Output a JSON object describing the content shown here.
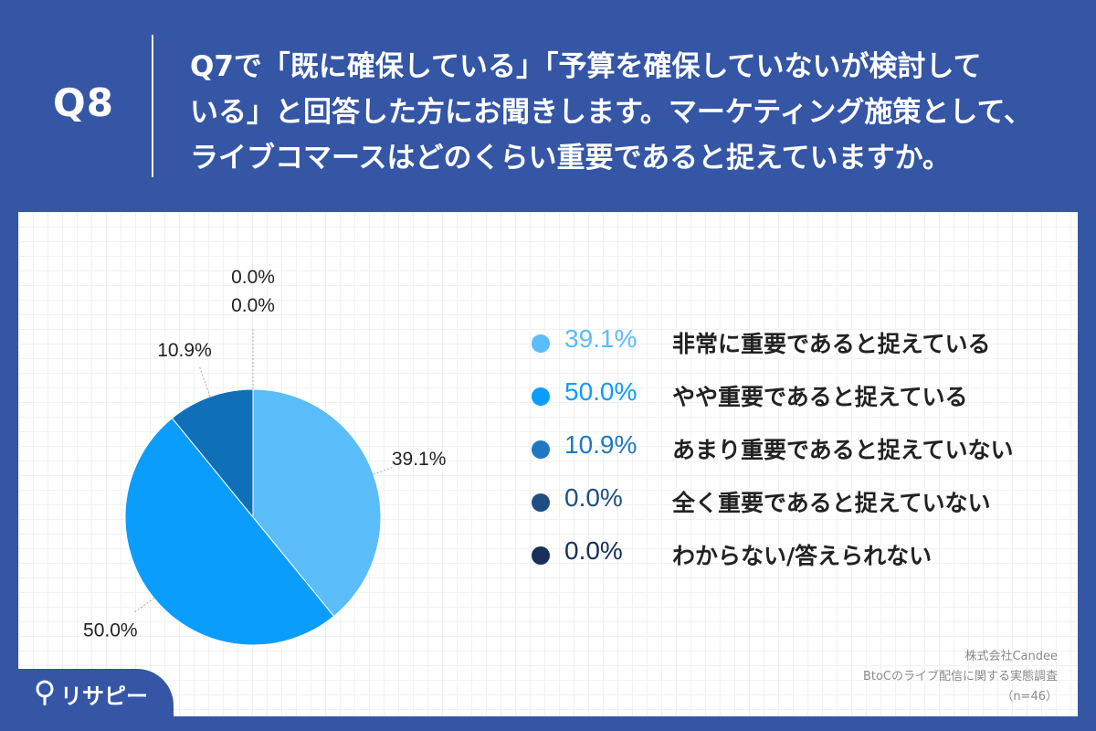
{
  "header": {
    "qnum": "Q8",
    "question_lines": [
      "Q7で「既に確保している」「予算を確保していないが検討して",
      "いる」と回答した方にお聞きします。マーケティング施策として、",
      "ライブコマースはどのくらい重要であると捉えていますか。"
    ]
  },
  "chart_data": {
    "type": "pie",
    "categories": [
      "非常に重要であると捉えている",
      "やや重要であると捉えている",
      "あまり重要であると捉えていない",
      "全く重要であると捉えていない",
      "わからない/答えられない"
    ],
    "values": [
      39.1,
      50.0,
      10.9,
      0.0,
      0.0
    ],
    "value_labels": [
      "39.1%",
      "50.0%",
      "10.9%",
      "0.0%",
      "0.0%"
    ],
    "colors": [
      "#5bbdfa",
      "#0b9dfb",
      "#0f70b8",
      "#1f4e83",
      "#172f5a"
    ],
    "legend_value_colors": [
      "#5bbdfa",
      "#0b9dfb",
      "#1f78c1",
      "#1f4e83",
      "#172f5a"
    ],
    "start": "12 o'clock",
    "direction": "clockwise"
  },
  "source": {
    "company": "株式会社Candee",
    "title": "BtoCのライブ配信に関する実態調査",
    "n": "（n=46）"
  },
  "logo": {
    "text": "リサピー"
  }
}
